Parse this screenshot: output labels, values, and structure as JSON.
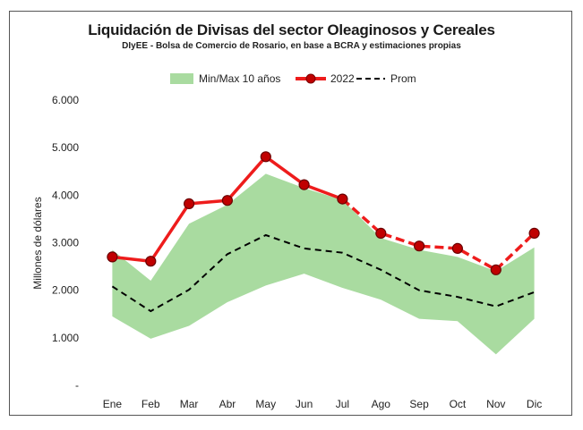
{
  "chart_data": {
    "type": "line",
    "title": "Liquidación de Divisas del sector Oleaginosos y Cereales",
    "subtitle": "DIyEE - Bolsa de Comercio de Rosario, en base a BCRA y estimaciones propias",
    "ylabel": "Millones de dólares",
    "xlabel": "",
    "categories": [
      "Ene",
      "Feb",
      "Mar",
      "Abr",
      "May",
      "Jun",
      "Jul",
      "Ago",
      "Sep",
      "Oct",
      "Nov",
      "Dic"
    ],
    "ylim": [
      0,
      6000
    ],
    "yticks": [
      0,
      1000,
      2000,
      3000,
      4000,
      5000,
      6000
    ],
    "ytick_labels": [
      "-",
      "1.000",
      "2.000",
      "3.000",
      "4.000",
      "5.000",
      "6.000"
    ],
    "legend_position": "top",
    "grid": false,
    "band": {
      "name": "Min/Max 10 años",
      "color": "#a9dba0",
      "min": [
        1450,
        980,
        1250,
        1750,
        2100,
        2350,
        2050,
        1800,
        1400,
        1350,
        650,
        1400
      ],
      "max": [
        2850,
        2200,
        3400,
        3800,
        4450,
        4150,
        3900,
        3100,
        2850,
        2700,
        2400,
        2900
      ]
    },
    "series": [
      {
        "name": "2022",
        "color": "#ee1c1c",
        "marker_color": "#c00000",
        "style": "solid-then-dashed",
        "solid_until_index": 6,
        "values": [
          2700,
          2610,
          3820,
          3890,
          4810,
          4220,
          3920,
          3200,
          2930,
          2880,
          2430,
          3200
        ]
      },
      {
        "name": "Prom",
        "color": "#000000",
        "style": "dashed",
        "values": [
          2080,
          1560,
          2010,
          2760,
          3160,
          2880,
          2790,
          2430,
          2000,
          1860,
          1660,
          1960
        ]
      }
    ]
  }
}
